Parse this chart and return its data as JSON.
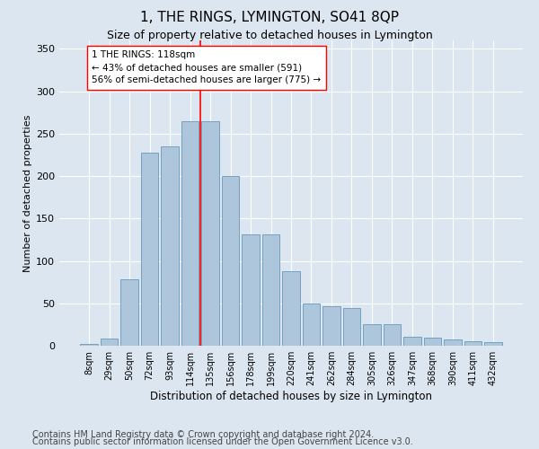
{
  "title": "1, THE RINGS, LYMINGTON, SO41 8QP",
  "subtitle": "Size of property relative to detached houses in Lymington",
  "xlabel": "Distribution of detached houses by size in Lymington",
  "ylabel": "Number of detached properties",
  "categories": [
    "8sqm",
    "29sqm",
    "50sqm",
    "72sqm",
    "93sqm",
    "114sqm",
    "135sqm",
    "156sqm",
    "178sqm",
    "199sqm",
    "220sqm",
    "241sqm",
    "262sqm",
    "284sqm",
    "305sqm",
    "326sqm",
    "347sqm",
    "368sqm",
    "390sqm",
    "411sqm",
    "432sqm"
  ],
  "bar_heights": [
    2,
    8,
    78,
    228,
    235,
    265,
    265,
    200,
    131,
    131,
    88,
    50,
    47,
    45,
    25,
    25,
    11,
    10,
    7,
    5,
    4
  ],
  "bar_color": "#aec6dc",
  "bar_edge_color": "#6699bb",
  "vline_x_index": 5.5,
  "vline_color": "red",
  "annotation_text": "1 THE RINGS: 118sqm\n← 43% of detached houses are smaller (591)\n56% of semi-detached houses are larger (775) →",
  "annotation_box_color": "white",
  "annotation_box_edge_color": "red",
  "ylim": [
    0,
    360
  ],
  "yticks": [
    0,
    50,
    100,
    150,
    200,
    250,
    300,
    350
  ],
  "footer_line1": "Contains HM Land Registry data © Crown copyright and database right 2024.",
  "footer_line2": "Contains public sector information licensed under the Open Government Licence v3.0.",
  "background_color": "#dce6f0",
  "plot_bg_color": "#dce6f0",
  "grid_color": "white",
  "title_fontsize": 11,
  "subtitle_fontsize": 9,
  "footer_fontsize": 7,
  "annotation_fontsize": 7.5,
  "ylabel_fontsize": 8,
  "xlabel_fontsize": 8.5,
  "xlabel_fontweight": "normal",
  "xtick_fontsize": 7,
  "ytick_fontsize": 8
}
